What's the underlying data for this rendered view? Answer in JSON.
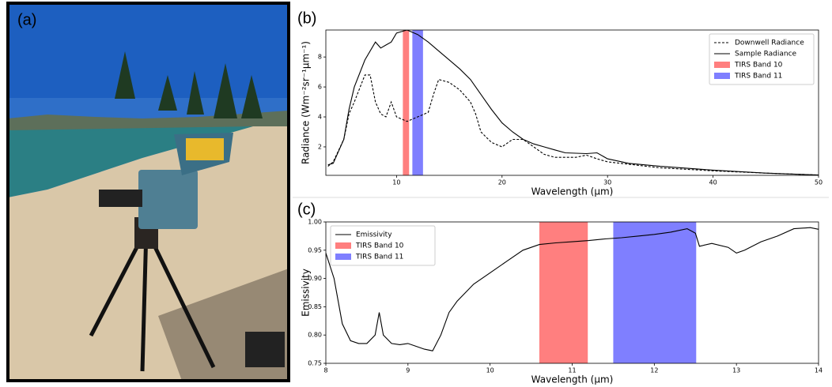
{
  "photo": {
    "panel_label": "(a)"
  },
  "chart_data": [
    {
      "type": "line",
      "panel_label": "(b)",
      "x_label": "Wavelength (μm)",
      "y_label": "Radiance (Wm⁻²sr⁻¹μm⁻¹)",
      "xlim": [
        3.3,
        50
      ],
      "ylim": [
        0.1,
        9.8
      ],
      "xticks": [
        10,
        20,
        30,
        40,
        50
      ],
      "yticks": [
        2,
        4,
        6,
        8
      ],
      "legend": "upper right",
      "series": [
        {
          "name": "Downwell Radiance",
          "color": "#000000",
          "dash": true,
          "x": [
            3.5,
            4,
            5,
            5.5,
            6,
            7,
            7.5,
            8,
            8.5,
            9,
            9.5,
            10,
            11,
            12,
            13,
            13.5,
            14,
            15,
            16,
            17,
            17.5,
            18,
            19,
            20,
            21,
            22,
            23,
            24,
            25,
            27,
            28,
            29,
            30,
            35,
            40,
            45,
            50
          ],
          "values": [
            0.7,
            1.0,
            2.5,
            4.2,
            5.0,
            6.8,
            6.8,
            5.0,
            4.2,
            4.0,
            5.0,
            4.0,
            3.7,
            4.0,
            4.3,
            5.5,
            6.5,
            6.3,
            5.8,
            5.0,
            4.2,
            3.0,
            2.3,
            2.0,
            2.5,
            2.5,
            2.0,
            1.5,
            1.3,
            1.3,
            1.45,
            1.2,
            1.0,
            0.6,
            0.4,
            0.25,
            0.12
          ]
        },
        {
          "name": "Sample Radiance",
          "color": "#000000",
          "dash": false,
          "x": [
            3.5,
            4,
            5,
            5.5,
            6,
            7,
            8,
            8.5,
            9,
            9.5,
            10,
            10.5,
            11,
            12,
            13,
            14,
            15,
            16,
            17,
            18,
            19,
            20,
            21,
            22,
            23,
            24,
            25,
            26,
            28,
            29,
            30,
            32,
            35,
            40,
            45,
            50
          ],
          "values": [
            0.8,
            0.9,
            2.5,
            4.5,
            6.0,
            7.8,
            9.0,
            8.6,
            8.8,
            9.0,
            9.6,
            9.7,
            9.8,
            9.5,
            9.0,
            8.4,
            7.8,
            7.2,
            6.5,
            5.5,
            4.5,
            3.6,
            3.0,
            2.5,
            2.2,
            2.0,
            1.8,
            1.6,
            1.55,
            1.6,
            1.2,
            0.9,
            0.7,
            0.45,
            0.25,
            0.12
          ]
        }
      ],
      "bands": [
        {
          "name": "TIRS Band 10",
          "color": "#ff7f7f",
          "range": [
            10.6,
            11.19
          ]
        },
        {
          "name": "TIRS Band 11",
          "color": "#7f7fff",
          "range": [
            11.5,
            12.51
          ]
        }
      ]
    },
    {
      "type": "line",
      "panel_label": "(c)",
      "x_label": "Wavelength (μm)",
      "y_label": "Emissivity",
      "xlim": [
        8,
        14
      ],
      "ylim": [
        0.75,
        1.0
      ],
      "xticks": [
        8,
        9,
        10,
        11,
        12,
        13,
        14
      ],
      "yticks": [
        0.75,
        {
          "value": 0.8,
          "label": "0.80"
        },
        0.85,
        {
          "value": 0.9,
          "label": "0.90"
        },
        0.95,
        {
          "value": 1.0,
          "label": "1.00"
        }
      ],
      "legend": "upper left",
      "series": [
        {
          "name": "Emissivity",
          "color": "#000000",
          "dash": false,
          "x": [
            8,
            8.1,
            8.2,
            8.3,
            8.4,
            8.5,
            8.6,
            8.65,
            8.7,
            8.8,
            8.9,
            9.0,
            9.1,
            9.2,
            9.3,
            9.4,
            9.5,
            9.6,
            9.8,
            10,
            10.2,
            10.4,
            10.6,
            10.8,
            11,
            11.2,
            11.4,
            11.6,
            11.8,
            12,
            12.2,
            12.4,
            12.5,
            12.55,
            12.7,
            12.9,
            13,
            13.1,
            13.3,
            13.5,
            13.7,
            13.9,
            14
          ],
          "values": [
            0.945,
            0.9,
            0.82,
            0.79,
            0.785,
            0.785,
            0.8,
            0.84,
            0.8,
            0.785,
            0.783,
            0.785,
            0.78,
            0.775,
            0.772,
            0.8,
            0.84,
            0.86,
            0.89,
            0.91,
            0.93,
            0.95,
            0.96,
            0.963,
            0.965,
            0.967,
            0.97,
            0.972,
            0.975,
            0.978,
            0.982,
            0.988,
            0.98,
            0.957,
            0.962,
            0.955,
            0.945,
            0.95,
            0.965,
            0.975,
            0.988,
            0.99,
            0.987
          ]
        }
      ],
      "bands": [
        {
          "name": "TIRS Band 10",
          "color": "#ff7f7f",
          "range": [
            10.6,
            11.19
          ]
        },
        {
          "name": "TIRS Band 11",
          "color": "#7f7fff",
          "range": [
            11.5,
            12.51
          ]
        }
      ]
    }
  ]
}
